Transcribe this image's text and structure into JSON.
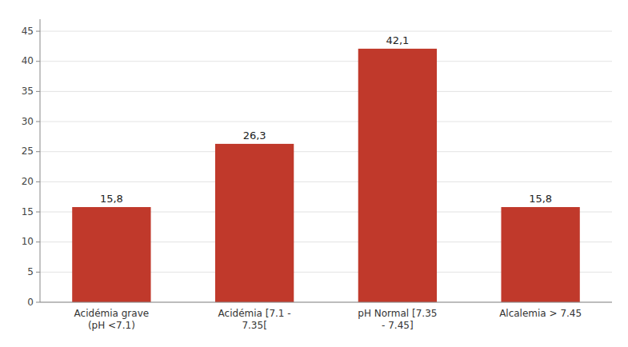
{
  "chart_data": {
    "type": "bar",
    "categories": [
      "Acidémia grave\n(pH <7.1)",
      "Acidémia [7.1 -\n7.35[",
      "pH Normal [7.35\n- 7.45]",
      "Alcalemia > 7.45"
    ],
    "values": [
      15.8,
      26.3,
      42.1,
      15.8
    ],
    "value_labels": [
      "15,8",
      "26,3",
      "42,1",
      "15,8"
    ],
    "data_labels": true,
    "color": "#c0392b",
    "ylim": [
      0,
      47
    ],
    "yticks": [
      0,
      5,
      10,
      15,
      20,
      25,
      30,
      35,
      40,
      45
    ],
    "grid": true
  }
}
